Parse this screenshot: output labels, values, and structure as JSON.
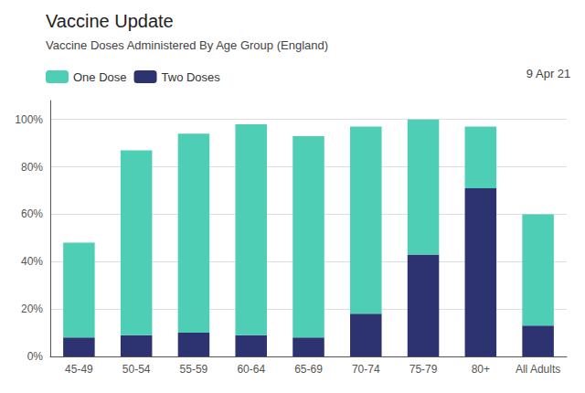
{
  "chart_data": {
    "type": "bar",
    "title": "Vaccine Update",
    "subtitle": "Vaccine Doses Administered By Age Group (England)",
    "annotation": "9 Apr 21",
    "categories": [
      "45-49",
      "50-54",
      "55-59",
      "60-64",
      "65-69",
      "70-74",
      "75-79",
      "80+",
      "All Adults"
    ],
    "series": [
      {
        "name": "Two Doses",
        "color": "#2d3270",
        "values": [
          8,
          9,
          10,
          9,
          8,
          18,
          43,
          71,
          13
        ]
      },
      {
        "name": "One Dose",
        "color": "#4ecfb5",
        "values": [
          40,
          78,
          84,
          89,
          85,
          79,
          57,
          26,
          47
        ]
      }
    ],
    "stacked": true,
    "ylim": [
      0,
      108
    ],
    "yticks": [
      {
        "value": 0,
        "label": "0%"
      },
      {
        "value": 20,
        "label": "20%"
      },
      {
        "value": 40,
        "label": "40%"
      },
      {
        "value": 60,
        "label": "60%"
      },
      {
        "value": 80,
        "label": "80%"
      },
      {
        "value": 100,
        "label": "100%"
      }
    ],
    "grid": true,
    "legend": "upper left"
  }
}
